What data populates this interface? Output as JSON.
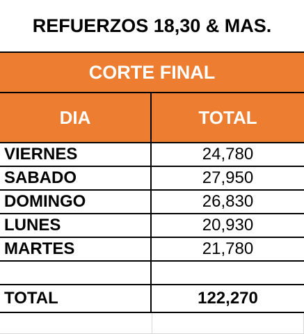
{
  "title": "REFUERZOS 18,30 & MAS.",
  "subtitle": "CORTE FINAL",
  "columns": {
    "day": "DIA",
    "total": "TOTAL"
  },
  "rows": [
    {
      "day": "VIERNES",
      "total": "24,780"
    },
    {
      "day": "SABADO",
      "total": "27,950"
    },
    {
      "day": "DOMINGO",
      "total": "26,830"
    },
    {
      "day": "LUNES",
      "total": "20,930"
    },
    {
      "day": "MARTES",
      "total": "21,780"
    },
    {
      "day": "",
      "total": ""
    }
  ],
  "summary": {
    "label": "TOTAL",
    "value": "122,270"
  },
  "colors": {
    "header_fill": "#ED7D31",
    "text_light": "#ffffff",
    "text_dark": "#000000",
    "grid_light": "#d8d8d8"
  }
}
